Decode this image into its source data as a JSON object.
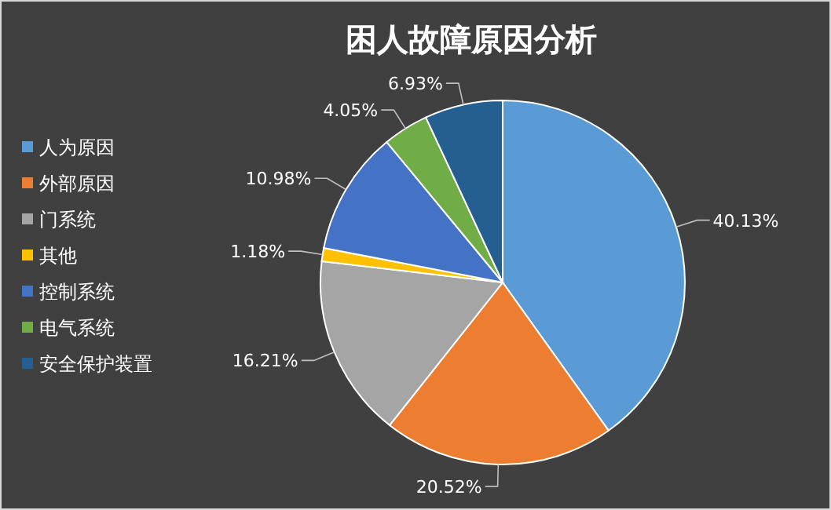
{
  "chart_data": {
    "type": "pie",
    "title": "困人故障原因分析",
    "categories": [
      "人为原因",
      "外部原因",
      "门系统",
      "其他",
      "控制系统",
      "电气系统",
      "安全保护装置"
    ],
    "values": [
      40.13,
      20.52,
      16.21,
      1.18,
      10.98,
      4.05,
      6.93
    ],
    "value_labels": [
      "40.13%",
      "20.52%",
      "16.21%",
      "1.18%",
      "10.98%",
      "4.05%",
      "6.93%"
    ],
    "colors": [
      "#5b9bd5",
      "#ed7d31",
      "#a5a5a5",
      "#ffc000",
      "#4472c4",
      "#70ad47",
      "#255e91"
    ],
    "legend": "left"
  }
}
